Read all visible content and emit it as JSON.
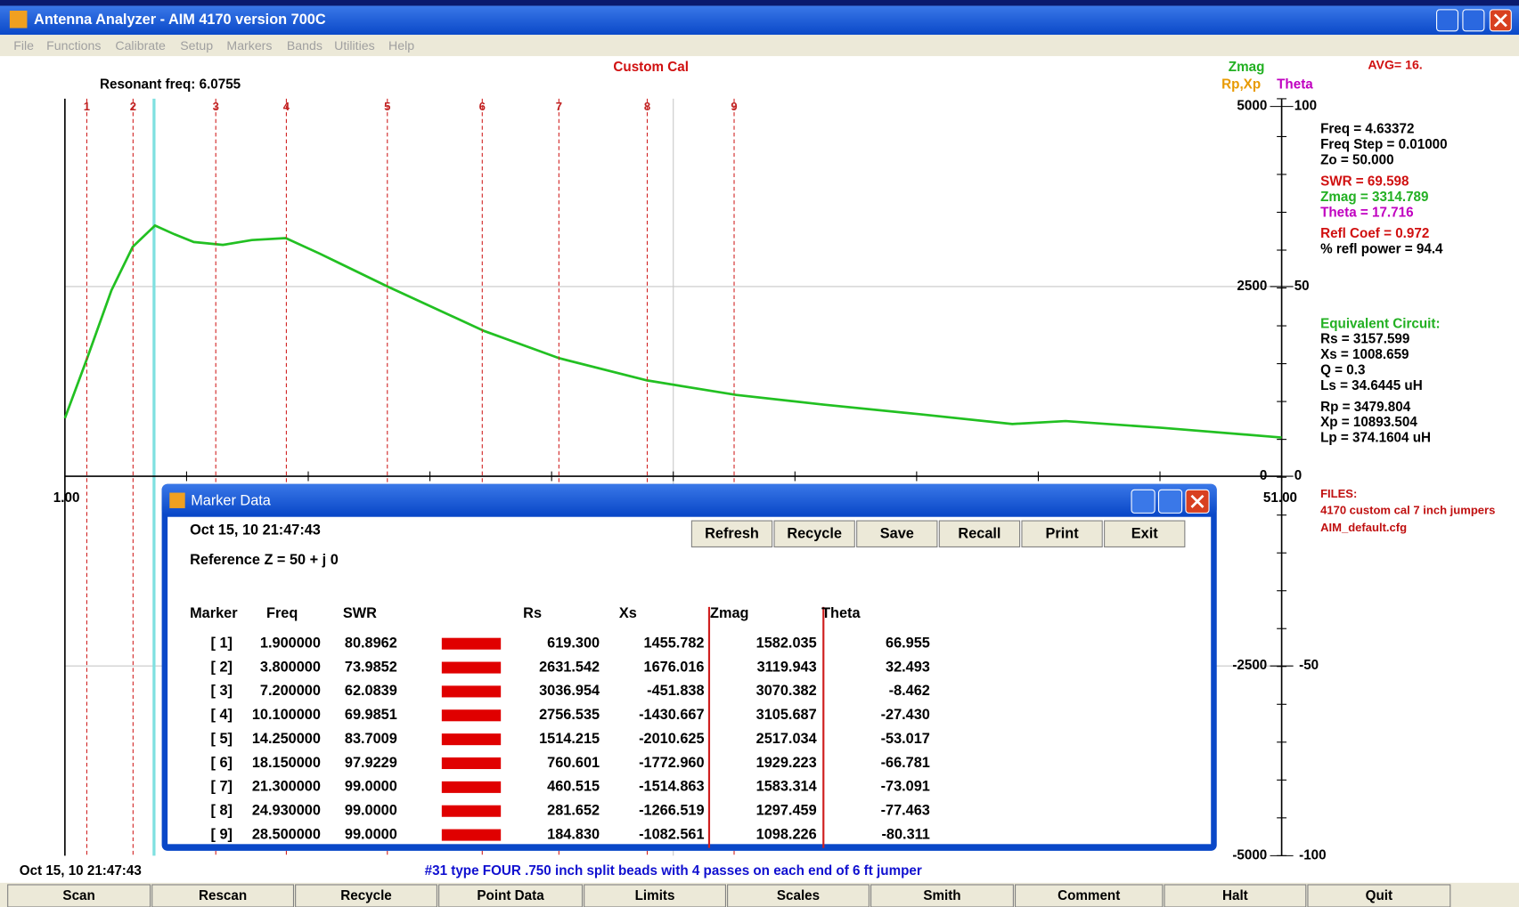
{
  "window": {
    "title": "Antenna Analyzer -  AIM 4170 version 700C",
    "menu": [
      "File",
      "Functions",
      "Calibrate",
      "Setup",
      "Markers",
      "Bands",
      "Utilities",
      "Help"
    ]
  },
  "plot": {
    "cal": "Custom Cal",
    "resonant": "Resonant freq:  6.0755",
    "legend": [
      {
        "text": "Zmag",
        "color": "#22b022"
      },
      {
        "text": "Rp,Xp",
        "color": "#e89a00"
      },
      {
        "text": "Theta",
        "color": "#c000c0"
      }
    ],
    "avg": "AVG=  16.",
    "x_start": "1.00",
    "x_end": "51.00",
    "left_ticks": [
      "5000",
      "2500",
      "0",
      "-2500",
      "-5000"
    ],
    "right_ticks": [
      "100",
      "50",
      "0",
      "-50",
      "-100"
    ],
    "markers": [
      "1",
      "2",
      "3",
      "4",
      "5",
      "6",
      "7",
      "8",
      "9"
    ]
  },
  "readout": [
    {
      "text": "Freq =  4.63372",
      "color": "#000000"
    },
    {
      "text": "Freq Step =  0.01000",
      "color": "#000000"
    },
    {
      "text": "Zo =   50.000",
      "color": "#000000"
    },
    {
      "text": "SWR  =  69.598",
      "color": "#d01010"
    },
    {
      "text": "Zmag = 3314.789",
      "color": "#22b022"
    },
    {
      "text": "Theta =   17.716",
      "color": "#c000c0"
    },
    {
      "text": "Refl Coef   = 0.972",
      "color": "#d01010"
    },
    {
      "text": "% refl power = 94.4",
      "color": "#000000"
    }
  ],
  "equivalent": [
    {
      "text": "Equivalent Circuit:",
      "color": "#22b022"
    },
    {
      "text": "Rs = 3157.599",
      "color": "#000000"
    },
    {
      "text": "Xs = 1008.659",
      "color": "#000000"
    },
    {
      "text": "Q =  0.3",
      "color": "#000000"
    },
    {
      "text": "Ls =   34.6445  uH",
      "color": "#000000"
    },
    {
      "text": "Rp = 3479.804",
      "color": "#000000"
    },
    {
      "text": "Xp = 10893.504",
      "color": "#000000"
    },
    {
      "text": "Lp =  374.1604  uH",
      "color": "#000000"
    }
  ],
  "files": [
    "FILES:",
    "4170 custom cal 7 inch jumpers",
    "AIM_default.cfg"
  ],
  "status": {
    "timestamp": "Oct 15, 10  21:47:43",
    "comment": "#31 type FOUR .750 inch split beads with 4 passes on each end of 6 ft jumper"
  },
  "buttons": [
    "Scan",
    "Rescan",
    "Recycle",
    "Point Data",
    "Limits",
    "Scales",
    "Smith",
    "Comment",
    "Halt",
    "Quit"
  ],
  "dialog": {
    "title": "Marker Data",
    "date": "Oct 15, 10  21:47:43",
    "reference": "Reference Z = 50  + j 0",
    "buttons": [
      "Refresh",
      "Recycle",
      "Save",
      "Recall",
      "Print",
      "Exit"
    ],
    "columns": [
      "Marker",
      "Freq",
      "SWR",
      "Rs",
      "Xs",
      "Zmag",
      "Theta"
    ],
    "rows": [
      [
        "[ 1]",
        "1.900000",
        "80.8962",
        "619.300",
        "1455.782",
        "1582.035",
        "66.955"
      ],
      [
        "[ 2]",
        "3.800000",
        "73.9852",
        "2631.542",
        "1676.016",
        "3119.943",
        "32.493"
      ],
      [
        "[ 3]",
        "7.200000",
        "62.0839",
        "3036.954",
        "-451.838",
        "3070.382",
        "-8.462"
      ],
      [
        "[ 4]",
        "10.100000",
        "69.9851",
        "2756.535",
        "-1430.667",
        "3105.687",
        "-27.430"
      ],
      [
        "[ 5]",
        "14.250000",
        "83.7009",
        "1514.215",
        "-2010.625",
        "2517.034",
        "-53.017"
      ],
      [
        "[ 6]",
        "18.150000",
        "97.9229",
        "760.601",
        "-1772.960",
        "1929.223",
        "-66.781"
      ],
      [
        "[ 7]",
        "21.300000",
        "99.0000",
        "460.515",
        "-1514.863",
        "1583.314",
        "-73.091"
      ],
      [
        "[ 8]",
        "24.930000",
        "99.0000",
        "281.652",
        "-1266.519",
        "1297.459",
        "-77.463"
      ],
      [
        "[ 9]",
        "28.500000",
        "99.0000",
        "184.830",
        "-1082.561",
        "1098.226",
        "-80.311"
      ]
    ]
  }
}
